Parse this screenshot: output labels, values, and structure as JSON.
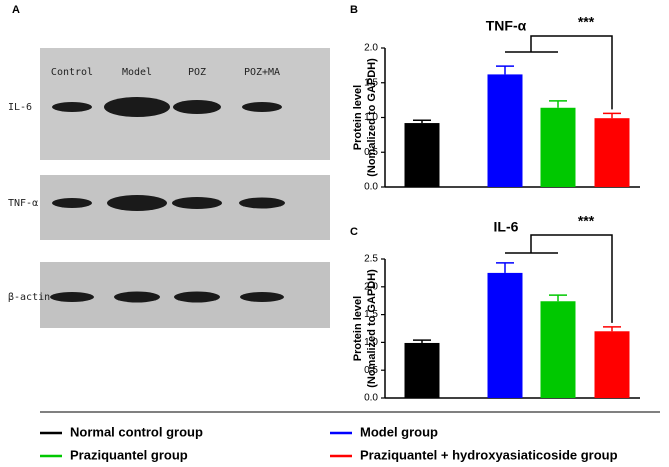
{
  "blot": {
    "panel_label": "A",
    "lanes": [
      "Control",
      "Model",
      "POZ",
      "POZ+MA"
    ],
    "rows": [
      "IL-6",
      "TNF-α",
      "β-actin"
    ]
  },
  "chart_data": [
    {
      "type": "bar",
      "panel_label": "B",
      "title": "TNF-α",
      "ylabel": [
        "Protein level",
        "(Nomalized to GAPDH)"
      ],
      "categories": [
        null,
        null,
        null,
        null
      ],
      "values": [
        0.92,
        1.62,
        1.14,
        0.99
      ],
      "errors": [
        0.04,
        0.12,
        0.1,
        0.07
      ],
      "colors": [
        "#000000",
        "#0000ff",
        "#00c800",
        "#ff0000"
      ],
      "annotation": "***",
      "ylim": [
        0,
        2
      ],
      "yticks": [
        {
          "value": 0,
          "label": "0.0"
        },
        0.5,
        {
          "value": 1,
          "label": "1.0"
        },
        1.5,
        {
          "value": 2,
          "label": "2.0"
        }
      ]
    },
    {
      "type": "bar",
      "panel_label": "C",
      "title": "IL-6",
      "ylabel": [
        "Protein level",
        "(Nomalized to GAPDH)"
      ],
      "categories": [
        null,
        null,
        null,
        null
      ],
      "values": [
        0.99,
        2.25,
        1.74,
        1.2
      ],
      "errors": [
        0.05,
        0.18,
        0.11,
        0.08
      ],
      "colors": [
        "#000000",
        "#0000ff",
        "#00c800",
        "#ff0000"
      ],
      "annotation": "***",
      "ylim": [
        0,
        2.5
      ],
      "yticks": [
        {
          "value": 0,
          "label": "0.0"
        },
        0.5,
        {
          "value": 1,
          "label": "1.0"
        },
        1.5,
        {
          "value": 2,
          "label": "2.0"
        },
        2.5
      ]
    }
  ],
  "legend": {
    "entries": [
      {
        "name": "Normal control group",
        "color": "#000000"
      },
      {
        "name": "Model group",
        "color": "#0000ff"
      },
      {
        "name": "Praziquantel group",
        "color": "#00c800"
      },
      {
        "name": "Praziquantel  + hydroxyasiaticoside group",
        "color": "#ff0000"
      }
    ]
  }
}
